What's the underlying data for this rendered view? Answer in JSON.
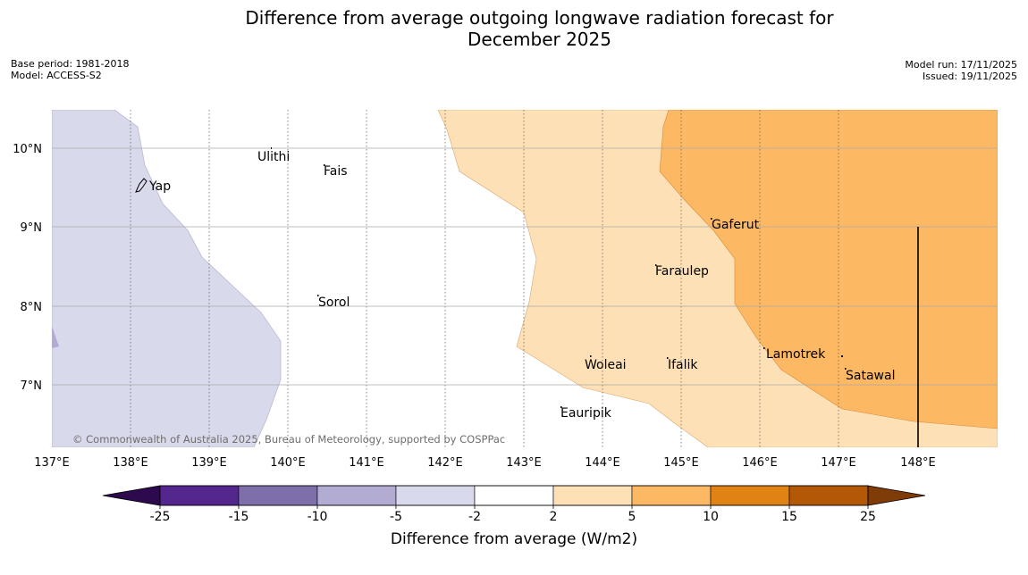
{
  "title": {
    "line1": "Difference from average outgoing longwave radiation forecast for",
    "line2": "December 2025"
  },
  "meta_left": {
    "base_period": "Base period: 1981-2018",
    "model": "Model: ACCESS-S2"
  },
  "meta_right": {
    "model_run": "Model run: 17/11/2025",
    "issued": "Issued: 19/11/2025"
  },
  "map": {
    "lon_labels": [
      "137°E",
      "138°E",
      "139°E",
      "140°E",
      "141°E",
      "142°E",
      "143°E",
      "144°E",
      "145°E",
      "146°E",
      "147°E",
      "148°E"
    ],
    "lat_labels": [
      "10°N",
      "9°N",
      "8°N",
      "7°N"
    ],
    "places": [
      "Ulithi",
      "Fais",
      "Yap",
      "Gaferut",
      "Faraulep",
      "Sorol",
      "Lamotrek",
      "Woleai",
      "Ifalik",
      "Satawal",
      "Eauripik"
    ],
    "copyright": "© Commonwealth of Australia 2025, Bureau of Meteorology, supported by COSPPac"
  },
  "legend": {
    "title": "Difference from average (W/m2)",
    "ticks": [
      "-25",
      "-15",
      "-10",
      "-5",
      "-2",
      "2",
      "5",
      "10",
      "15",
      "25"
    ],
    "colors": {
      "below_min": "#2d0a4e",
      "bins": [
        "#54278f",
        "#7e6fab",
        "#b2abd2",
        "#d8d9ea",
        "#ffffff",
        "#fde0b5",
        "#fdb863",
        "#e08214",
        "#b35806"
      ],
      "above_max": "#7f3b08"
    }
  }
}
